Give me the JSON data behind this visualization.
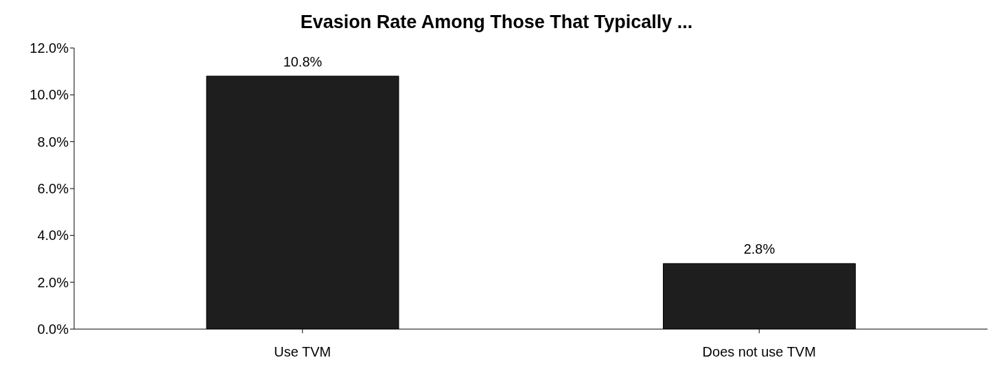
{
  "chart_data": {
    "type": "bar",
    "title": "Evasion Rate Among Those That Typically ...",
    "categories": [
      "Use TVM",
      "Does not use TVM"
    ],
    "series": [
      {
        "color": "#1e1e1e",
        "values": [
          10.8,
          2.8
        ]
      }
    ],
    "value_labels": [
      "10.8%",
      "2.8%"
    ],
    "ylim": [
      0,
      12
    ],
    "yticks": [
      {
        "value": 0,
        "label": "0.0%"
      },
      {
        "value": 2,
        "label": "2.0%"
      },
      {
        "value": 4,
        "label": "4.0%"
      },
      {
        "value": 6,
        "label": "6.0%"
      },
      {
        "value": 8,
        "label": "8.0%"
      },
      {
        "value": 10,
        "label": "10.0%"
      },
      {
        "value": 12,
        "label": "12.0%"
      }
    ],
    "grid": false,
    "legend": false
  }
}
